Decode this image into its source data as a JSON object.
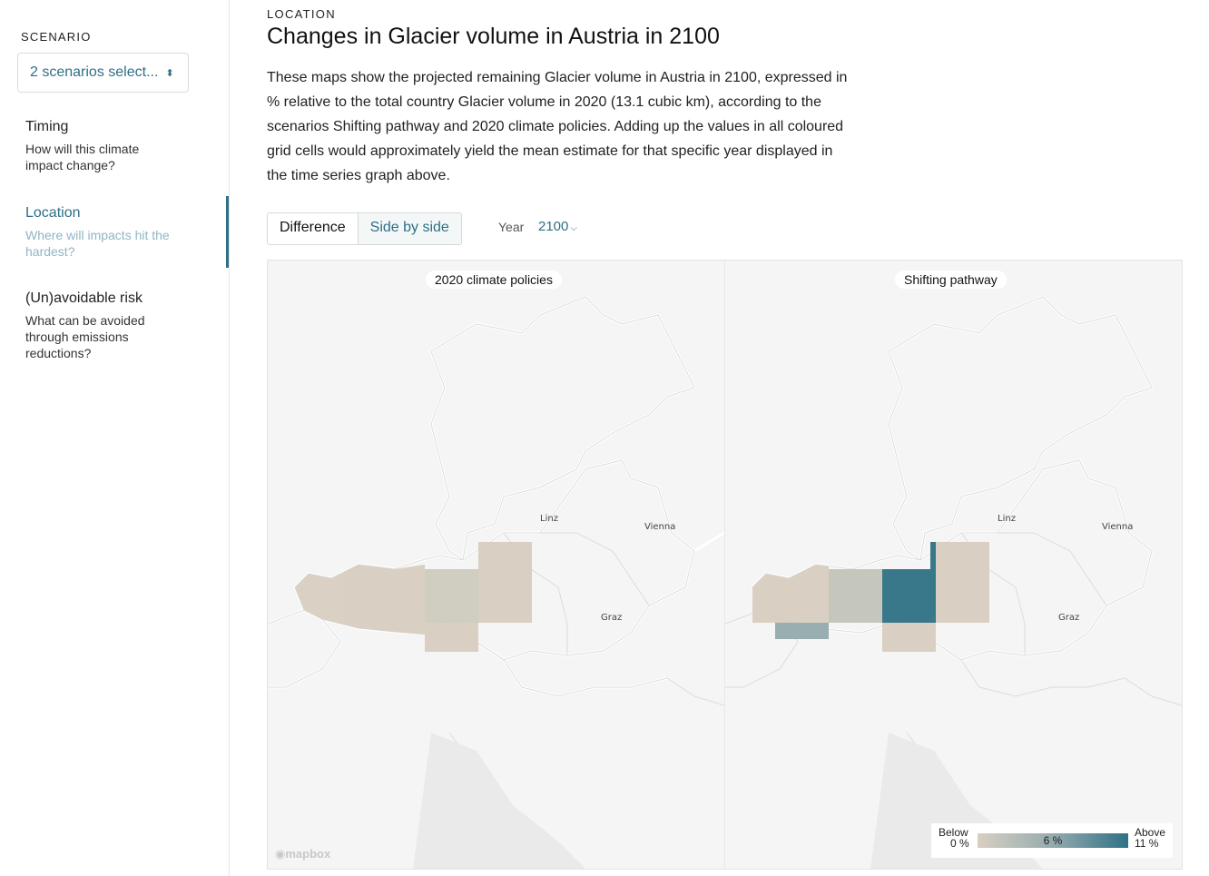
{
  "sidebar": {
    "scenario_label": "SCENARIO",
    "scenario_select_value": "2 scenarios select...",
    "items": [
      {
        "title": "Timing",
        "desc": "How will this climate impact change?"
      },
      {
        "title": "Location",
        "desc": "Where will impacts hit the hardest?"
      },
      {
        "title": "(Un)avoidable risk",
        "desc": "What can be avoided through emissions reductions?"
      }
    ],
    "active_item": "Location"
  },
  "main": {
    "eyebrow": "LOCATION",
    "title": "Changes in Glacier volume in Austria in 2100",
    "description": "These maps show the projected remaining Glacier volume in Austria in 2100, expressed in % relative to the total country Glacier volume in 2020 (13.1 cubic km), according to the scenarios Shifting pathway and 2020 climate policies. Adding up the values in all coloured grid cells would approximately yield the mean estimate for that specific year displayed in the time series graph above.",
    "toggle": {
      "difference": "Difference",
      "side_by_side": "Side by side",
      "selected": "Side by side"
    },
    "year_label": "Year",
    "year_value": "2100"
  },
  "maps": {
    "left_title": "2020 climate policies",
    "right_title": "Shifting pathway",
    "cities": {
      "linz": "Linz",
      "vienna": "Vienna",
      "graz": "Graz"
    },
    "attribution": "mapbox",
    "legend": {
      "below_label": "Below",
      "below_value": "0 %",
      "mid_value": "6 %",
      "above_label": "Above",
      "above_value": "11 %",
      "colors": {
        "low": "#d8cfc2",
        "mid": "#94abae",
        "high": "#2f7186"
      }
    }
  },
  "colors": {
    "accent": "#2f6f86"
  }
}
